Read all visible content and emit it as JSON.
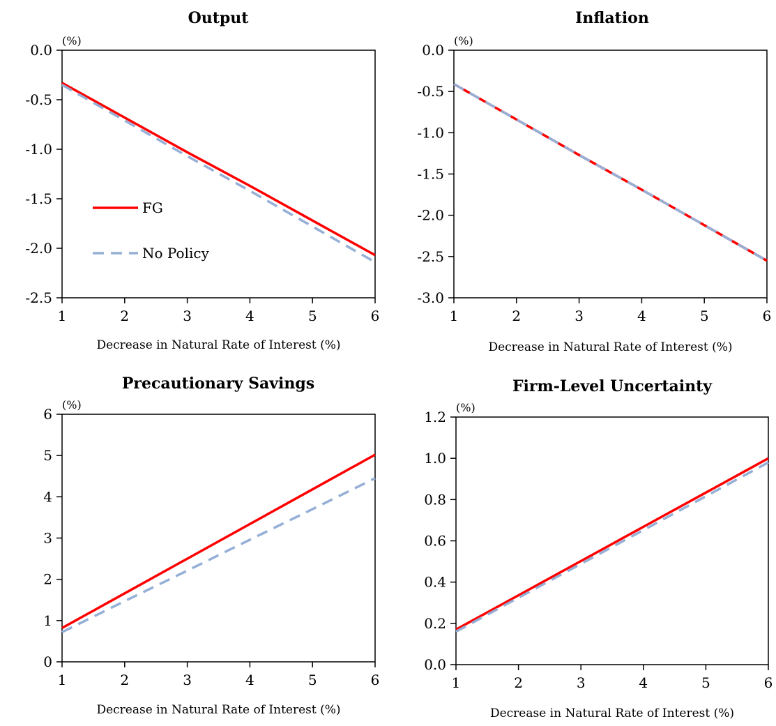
{
  "chart_data": [
    {
      "type": "line",
      "title": "Output",
      "xlabel": "Decrease in Natural Rate of Interest (%)",
      "ylabel": "(%)",
      "x": [
        1,
        2,
        3,
        4,
        5,
        6
      ],
      "xlim": [
        1,
        6
      ],
      "ylim": [
        -2.5,
        0.0
      ],
      "yticks": [
        0.0,
        -0.5,
        -1.0,
        -1.5,
        -2.0,
        -2.5
      ],
      "ytick_labels": [
        "0.0",
        "-0.5",
        "-1.0",
        "-1.5",
        "-2.0",
        "-2.5"
      ],
      "xtick_labels": [
        "1",
        "2",
        "3",
        "4",
        "5",
        "6"
      ],
      "grid": false,
      "legend": {
        "placement": "center-left",
        "entries": [
          "FG",
          "No Policy"
        ]
      },
      "series": [
        {
          "name": "FG",
          "values": [
            -0.33,
            -0.68,
            -1.03,
            -1.37,
            -1.72,
            -2.07
          ]
        },
        {
          "name": "No Policy",
          "values": [
            -0.35,
            -0.71,
            -1.07,
            -1.42,
            -1.78,
            -2.14
          ]
        }
      ]
    },
    {
      "type": "line",
      "title": "Inflation",
      "xlabel": "Decrease in Natural Rate of Interest (%)",
      "ylabel": "(%)",
      "x": [
        1,
        2,
        3,
        4,
        5,
        6
      ],
      "xlim": [
        1,
        6
      ],
      "ylim": [
        -3.0,
        0.0
      ],
      "yticks": [
        0.0,
        -0.5,
        -1.0,
        -1.5,
        -2.0,
        -2.5,
        -3.0
      ],
      "ytick_labels": [
        "0.0",
        "-0.5",
        "-1.0",
        "-1.5",
        "-2.0",
        "-2.5",
        "-3.0"
      ],
      "xtick_labels": [
        "1",
        "2",
        "3",
        "4",
        "5",
        "6"
      ],
      "grid": false,
      "series": [
        {
          "name": "FG",
          "values": [
            -0.41,
            -0.84,
            -1.27,
            -1.69,
            -2.12,
            -2.55
          ]
        },
        {
          "name": "No Policy",
          "values": [
            -0.41,
            -0.84,
            -1.27,
            -1.69,
            -2.12,
            -2.55
          ]
        }
      ]
    },
    {
      "type": "line",
      "title": "Precautionary Savings",
      "xlabel": "Decrease in Natural Rate of Interest (%)",
      "ylabel": "(%)",
      "x": [
        1,
        2,
        3,
        4,
        5,
        6
      ],
      "xlim": [
        1,
        6
      ],
      "ylim": [
        0,
        6
      ],
      "yticks": [
        6,
        5,
        4,
        3,
        2,
        1,
        0
      ],
      "ytick_labels": [
        "6",
        "5",
        "4",
        "3",
        "2",
        "1",
        "0"
      ],
      "xtick_labels": [
        "1",
        "2",
        "3",
        "4",
        "5",
        "6"
      ],
      "grid": false,
      "series": [
        {
          "name": "FG",
          "values": [
            0.82,
            1.66,
            2.5,
            3.34,
            4.18,
            5.02
          ]
        },
        {
          "name": "No Policy",
          "values": [
            0.72,
            1.47,
            2.21,
            2.96,
            3.7,
            4.45
          ]
        }
      ]
    },
    {
      "type": "line",
      "title": "Firm-Level Uncertainty",
      "xlabel": "Decrease in Natural Rate of Interest (%)",
      "ylabel": "(%)",
      "x": [
        1,
        2,
        3,
        4,
        5,
        6
      ],
      "xlim": [
        1,
        6
      ],
      "ylim": [
        0.0,
        1.2
      ],
      "yticks": [
        1.2,
        1.0,
        0.8,
        0.6,
        0.4,
        0.2,
        0.0
      ],
      "ytick_labels": [
        "1.2",
        "1.0",
        "0.8",
        "0.6",
        "0.4",
        "0.2",
        "0.0"
      ],
      "xtick_labels": [
        "1",
        "2",
        "3",
        "4",
        "5",
        "6"
      ],
      "grid": false,
      "series": [
        {
          "name": "FG",
          "values": [
            0.17,
            0.336,
            0.502,
            0.668,
            0.834,
            1.0
          ]
        },
        {
          "name": "No Policy",
          "values": [
            0.16,
            0.324,
            0.488,
            0.652,
            0.816,
            0.98
          ]
        }
      ]
    }
  ],
  "colors": {
    "fg": "#ff0000",
    "no_policy": "#95afd6",
    "axis": "#000000"
  }
}
